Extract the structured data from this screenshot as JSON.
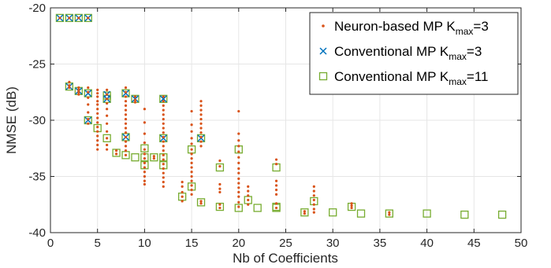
{
  "colors": {
    "neuron": "#d95319",
    "conv3": "#0072bd",
    "conv11": "#77ac30",
    "axis": "#262626",
    "grid": "#e6e6e6"
  },
  "chart_data": {
    "type": "scatter",
    "xlabel": "Nb of Coefficients",
    "ylabel": "NMSE (dB)",
    "xlim": [
      0,
      50
    ],
    "ylim": [
      -40,
      -20
    ],
    "xticks": [
      "0",
      "5",
      "10",
      "15",
      "20",
      "25",
      "30",
      "35",
      "40",
      "45",
      "50"
    ],
    "yticks": [
      "-20",
      "-25",
      "-30",
      "-35",
      "-40"
    ],
    "grid": true,
    "legend_position": "top-right",
    "legend": [
      {
        "prefix": "Neuron-based MP K",
        "sub": "max",
        "suffix": "=3",
        "marker": "dot",
        "color_key": "neuron"
      },
      {
        "prefix": "Conventional MP K",
        "sub": "max",
        "suffix": "=3",
        "marker": "x",
        "color_key": "conv3"
      },
      {
        "prefix": "Conventional MP K",
        "sub": "max",
        "suffix": "=11",
        "marker": "square",
        "color_key": "conv11"
      }
    ],
    "series": [
      {
        "marker": "dot",
        "color_key": "neuron",
        "points": [
          [
            1,
            -20.9
          ],
          [
            2,
            -20.9
          ],
          [
            3,
            -20.9
          ],
          [
            4,
            -20.9
          ],
          [
            2,
            -26.6
          ],
          [
            2,
            -26.9
          ],
          [
            2,
            -27.1
          ],
          [
            3,
            -27.1
          ],
          [
            3,
            -27.3
          ],
          [
            3,
            -27.5
          ],
          [
            3,
            -27.7
          ],
          [
            4,
            -27.1
          ],
          [
            4,
            -27.5
          ],
          [
            4,
            -28.0
          ],
          [
            4,
            -28.6
          ],
          [
            4,
            -29.3
          ],
          [
            4,
            -29.9
          ],
          [
            4,
            -30.3
          ],
          [
            5,
            -27.3
          ],
          [
            5,
            -27.6
          ],
          [
            5,
            -27.9
          ],
          [
            5,
            -28.3
          ],
          [
            5,
            -28.6
          ],
          [
            5,
            -29.0
          ],
          [
            5,
            -29.4
          ],
          [
            5,
            -29.8
          ],
          [
            5,
            -30.2
          ],
          [
            5,
            -30.6
          ],
          [
            5,
            -31.0
          ],
          [
            5,
            -31.4
          ],
          [
            5,
            -31.8
          ],
          [
            5,
            -32.2
          ],
          [
            5,
            -32.6
          ],
          [
            6,
            -27.3
          ],
          [
            6,
            -27.7
          ],
          [
            6,
            -28.1
          ],
          [
            6,
            -28.5
          ],
          [
            6,
            -29.0
          ],
          [
            6,
            -29.6
          ],
          [
            6,
            -30.3
          ],
          [
            6,
            -31.0
          ],
          [
            6,
            -31.6
          ],
          [
            6,
            -32.2
          ],
          [
            6,
            -32.6
          ],
          [
            7,
            -32.7
          ],
          [
            7,
            -33.0
          ],
          [
            8,
            -27.1
          ],
          [
            8,
            -27.5
          ],
          [
            8,
            -27.9
          ],
          [
            8,
            -28.3
          ],
          [
            8,
            -28.7
          ],
          [
            8,
            -29.1
          ],
          [
            8,
            -29.5
          ],
          [
            8,
            -29.9
          ],
          [
            8,
            -30.3
          ],
          [
            8,
            -30.7
          ],
          [
            8,
            -31.1
          ],
          [
            8,
            -31.5
          ],
          [
            8,
            -31.9
          ],
          [
            8,
            -32.3
          ],
          [
            8,
            -32.7
          ],
          [
            8,
            -33.1
          ],
          [
            9,
            -27.9
          ],
          [
            9,
            -28.2
          ],
          [
            9,
            -28.4
          ],
          [
            10,
            -29.0
          ],
          [
            10,
            -30.2
          ],
          [
            10,
            -31.2
          ],
          [
            10,
            -32.0
          ],
          [
            10,
            -32.6
          ],
          [
            10,
            -33.0
          ],
          [
            10,
            -33.4
          ],
          [
            10,
            -33.8
          ],
          [
            10,
            -34.2
          ],
          [
            10,
            -34.6
          ],
          [
            10,
            -35.0
          ],
          [
            10,
            -35.4
          ],
          [
            10,
            -35.7
          ],
          [
            11,
            -33.2
          ],
          [
            11,
            -33.4
          ],
          [
            12,
            -27.9
          ],
          [
            12,
            -28.3
          ],
          [
            12,
            -28.7
          ],
          [
            12,
            -29.1
          ],
          [
            12,
            -29.5
          ],
          [
            12,
            -29.9
          ],
          [
            12,
            -30.3
          ],
          [
            12,
            -30.7
          ],
          [
            12,
            -31.1
          ],
          [
            12,
            -31.5
          ],
          [
            12,
            -31.9
          ],
          [
            12,
            -32.3
          ],
          [
            12,
            -32.7
          ],
          [
            12,
            -33.1
          ],
          [
            12,
            -33.5
          ],
          [
            12,
            -33.9
          ],
          [
            12,
            -34.3
          ],
          [
            12,
            -34.7
          ],
          [
            12,
            -35.1
          ],
          [
            12,
            -35.5
          ],
          [
            12,
            -35.9
          ],
          [
            14,
            -35.5
          ],
          [
            14,
            -35.9
          ],
          [
            14,
            -36.4
          ],
          [
            14,
            -36.8
          ],
          [
            14,
            -37.2
          ],
          [
            15,
            -29.2
          ],
          [
            15,
            -30.4
          ],
          [
            15,
            -31.0
          ],
          [
            15,
            -31.6
          ],
          [
            15,
            -32.1
          ],
          [
            15,
            -32.6
          ],
          [
            15,
            -33.0
          ],
          [
            15,
            -33.4
          ],
          [
            15,
            -33.8
          ],
          [
            15,
            -34.2
          ],
          [
            15,
            -34.6
          ],
          [
            15,
            -35.0
          ],
          [
            15,
            -35.4
          ],
          [
            15,
            -35.8
          ],
          [
            15,
            -36.2
          ],
          [
            15,
            -36.6
          ],
          [
            16,
            -28.3
          ],
          [
            16,
            -28.7
          ],
          [
            16,
            -29.1
          ],
          [
            16,
            -29.5
          ],
          [
            16,
            -29.9
          ],
          [
            16,
            -30.3
          ],
          [
            16,
            -30.7
          ],
          [
            16,
            -31.1
          ],
          [
            16,
            -31.5
          ],
          [
            16,
            -31.9
          ],
          [
            16,
            -32.3
          ],
          [
            16,
            -37.2
          ],
          [
            16,
            -37.4
          ],
          [
            18,
            -33.6
          ],
          [
            18,
            -34.1
          ],
          [
            18,
            -35.7
          ],
          [
            18,
            -36.1
          ],
          [
            18,
            -36.4
          ],
          [
            18,
            -37.5
          ],
          [
            18,
            -37.8
          ],
          [
            20,
            -29.2
          ],
          [
            20,
            -31.2
          ],
          [
            20,
            -31.8
          ],
          [
            20,
            -32.3
          ],
          [
            20,
            -32.8
          ],
          [
            20,
            -33.3
          ],
          [
            20,
            -33.8
          ],
          [
            20,
            -34.3
          ],
          [
            20,
            -34.7
          ],
          [
            20,
            -35.2
          ],
          [
            20,
            -35.6
          ],
          [
            20,
            -36.0
          ],
          [
            20,
            -36.4
          ],
          [
            20,
            -36.8
          ],
          [
            20,
            -37.3
          ],
          [
            20,
            -37.7
          ],
          [
            21,
            -35.9
          ],
          [
            21,
            -36.3
          ],
          [
            21,
            -36.7
          ],
          [
            21,
            -37.1
          ],
          [
            21,
            -37.5
          ],
          [
            24,
            -33.5
          ],
          [
            24,
            -33.9
          ],
          [
            24,
            -35.4
          ],
          [
            24,
            -35.8
          ],
          [
            24,
            -36.2
          ],
          [
            24,
            -36.6
          ],
          [
            24,
            -37.4
          ],
          [
            24,
            -37.8
          ],
          [
            27,
            -38.1
          ],
          [
            27,
            -38.3
          ],
          [
            28,
            -35.9
          ],
          [
            28,
            -36.3
          ],
          [
            28,
            -36.7
          ],
          [
            28,
            -37.1
          ],
          [
            28,
            -37.5
          ],
          [
            28,
            -37.9
          ],
          [
            28,
            -38.2
          ],
          [
            32,
            -37.4
          ],
          [
            32,
            -37.6
          ],
          [
            32,
            -37.8
          ],
          [
            36,
            -38.2
          ],
          [
            36,
            -38.4
          ]
        ]
      },
      {
        "marker": "x",
        "color_key": "conv3",
        "points": [
          [
            1,
            -20.9
          ],
          [
            2,
            -20.9
          ],
          [
            3,
            -20.9
          ],
          [
            4,
            -20.9
          ],
          [
            2,
            -27.0
          ],
          [
            3,
            -27.4
          ],
          [
            4,
            -27.6
          ],
          [
            4,
            -30.0
          ],
          [
            6,
            -27.7
          ],
          [
            6,
            -28.1
          ],
          [
            8,
            -27.6
          ],
          [
            8,
            -31.5
          ],
          [
            9,
            -28.1
          ],
          [
            12,
            -28.1
          ],
          [
            12,
            -31.6
          ],
          [
            16,
            -31.6
          ]
        ]
      },
      {
        "marker": "square",
        "color_key": "conv11",
        "points": [
          [
            1,
            -20.9
          ],
          [
            2,
            -20.9
          ],
          [
            3,
            -20.9
          ],
          [
            4,
            -20.9
          ],
          [
            2,
            -27.0
          ],
          [
            3,
            -27.4
          ],
          [
            4,
            -27.6
          ],
          [
            4,
            -30.0
          ],
          [
            5,
            -30.7
          ],
          [
            6,
            -31.6
          ],
          [
            6,
            -27.8
          ],
          [
            6,
            -28.1
          ],
          [
            7,
            -32.9
          ],
          [
            8,
            -27.6
          ],
          [
            8,
            -31.5
          ],
          [
            8,
            -33.1
          ],
          [
            9,
            -28.1
          ],
          [
            9,
            -33.3
          ],
          [
            10,
            -32.5
          ],
          [
            10,
            -33.3
          ],
          [
            10,
            -34.0
          ],
          [
            11,
            -33.3
          ],
          [
            12,
            -28.1
          ],
          [
            12,
            -31.6
          ],
          [
            12,
            -33.3
          ],
          [
            12,
            -34.0
          ],
          [
            14,
            -36.8
          ],
          [
            15,
            -32.6
          ],
          [
            15,
            -35.9
          ],
          [
            16,
            -31.6
          ],
          [
            16,
            -37.3
          ],
          [
            18,
            -34.2
          ],
          [
            18,
            -37.7
          ],
          [
            20,
            -32.6
          ],
          [
            20,
            -37.8
          ],
          [
            21,
            -37.1
          ],
          [
            22,
            -37.8
          ],
          [
            24,
            -34.2
          ],
          [
            24,
            -37.7
          ],
          [
            24,
            -37.8
          ],
          [
            27,
            -38.2
          ],
          [
            28,
            -37.2
          ],
          [
            30,
            -38.2
          ],
          [
            32,
            -37.7
          ],
          [
            33,
            -38.3
          ],
          [
            36,
            -38.3
          ],
          [
            40,
            -38.3
          ],
          [
            44,
            -38.4
          ],
          [
            48,
            -38.4
          ]
        ]
      }
    ]
  }
}
